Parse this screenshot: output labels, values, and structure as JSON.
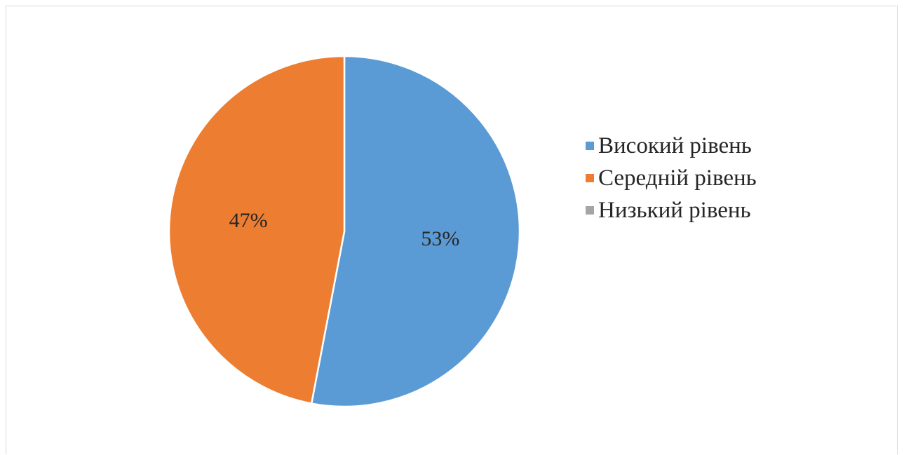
{
  "chart_data": {
    "type": "pie",
    "categories": [
      "Високий рівень",
      "Середній рівень",
      "Низький рівень"
    ],
    "values": [
      53,
      47,
      0
    ],
    "labels": [
      "53%",
      "47%",
      ""
    ],
    "colors": [
      "#5b9bd5",
      "#ed7d31",
      "#a5a5a5"
    ],
    "legend_position": "right"
  }
}
